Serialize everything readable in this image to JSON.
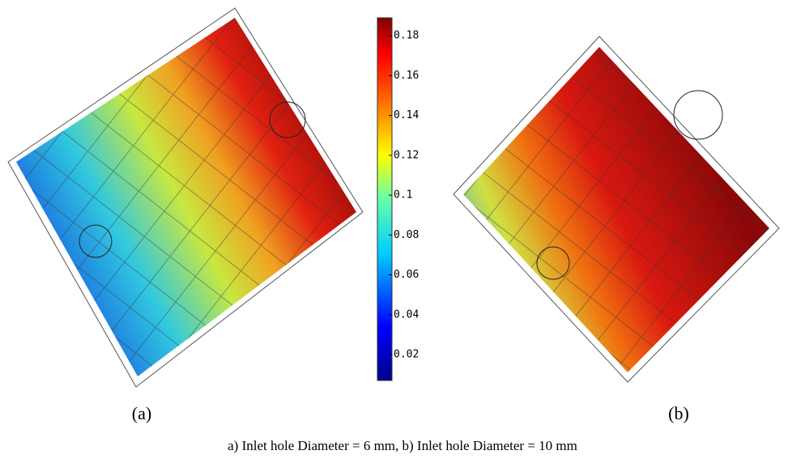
{
  "colorbar": {
    "range": [
      0.007,
      0.189
    ],
    "ticks": [
      0.02,
      0.04,
      0.06,
      0.08,
      0.1,
      0.12,
      0.14,
      0.16,
      0.18
    ]
  },
  "panels": [
    {
      "label": "(a)"
    },
    {
      "label": "(b)"
    }
  ],
  "caption": "a) Inlet hole Diameter = 6 mm, b) Inlet hole Diameter = 10 mm"
}
